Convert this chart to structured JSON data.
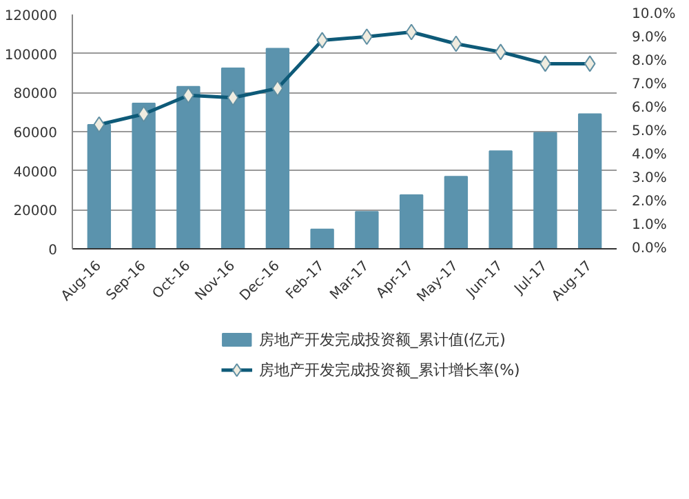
{
  "chart_data": {
    "type": "bar",
    "categories": [
      "Aug-16",
      "Sep-16",
      "Oct-16",
      "Nov-16",
      "Dec-16",
      "Feb-17",
      "Mar-17",
      "Apr-17",
      "May-17",
      "Jun-17",
      "Jul-17",
      "Aug-17"
    ],
    "series": [
      {
        "name": "房地产开发完成投资额_累计值(亿元)",
        "color": "#5b93ad",
        "values": [
          63500,
          74500,
          83000,
          92500,
          102500,
          10000,
          19000,
          27500,
          37000,
          50000,
          59500,
          69000
        ]
      },
      {
        "name": "房地产开发完成投资额_累计增长率(%)",
        "type": "line",
        "axis": "y2",
        "color": "#0e5a78",
        "marker": "diamond",
        "values": [
          5.3,
          5.75,
          6.55,
          6.45,
          6.85,
          8.9,
          9.05,
          9.25,
          8.75,
          8.4,
          7.9,
          7.9
        ]
      }
    ],
    "ylim": [
      0,
      120000
    ],
    "yticks": [
      0,
      20000,
      40000,
      60000,
      80000,
      100000,
      120000
    ],
    "y2lim": [
      0,
      10
    ],
    "y2ticks": [
      {
        "value": 0,
        "label": "0.0%"
      },
      {
        "value": 1,
        "label": "1.0%"
      },
      {
        "value": 2,
        "label": "2.0%"
      },
      {
        "value": 3,
        "label": "3.0%"
      },
      {
        "value": 4,
        "label": "4.0%"
      },
      {
        "value": 5,
        "label": "5.0%"
      },
      {
        "value": 6,
        "label": "6.0%"
      },
      {
        "value": 7,
        "label": "7.0%"
      },
      {
        "value": 8,
        "label": "8.0%"
      },
      {
        "value": 9,
        "label": "9.0%"
      },
      {
        "value": 10,
        "label": "10.0%"
      }
    ],
    "grid": "y",
    "legend": "bottom"
  }
}
